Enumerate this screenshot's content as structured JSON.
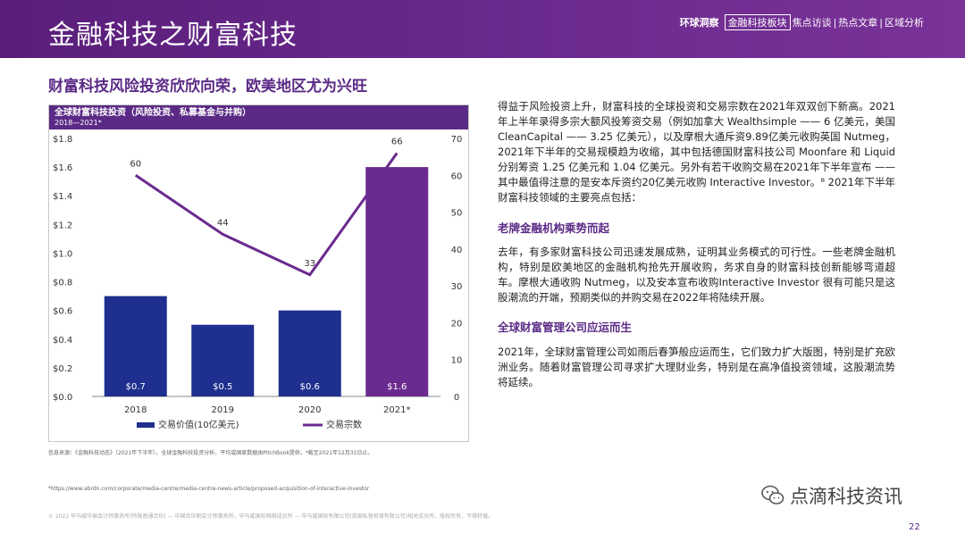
{
  "header": {
    "title": "金融科技之财富科技",
    "nav": {
      "main": "环球洞察",
      "active": "金融科技板块",
      "items": [
        "焦点访谈",
        "热点文章",
        "区域分析"
      ],
      "separator": "|"
    }
  },
  "subtitle": "财富科技风险投资欣欣向荣，欧美地区尤为兴旺",
  "chart_data": {
    "type": "bar",
    "title": "全球财富科技投资（风险投资、私募基金与并购）",
    "subtitle": "2018—2021*",
    "categories": [
      "2018",
      "2019",
      "2020",
      "2021*"
    ],
    "series": [
      {
        "name": "交易价值(10亿美元)",
        "type": "bar",
        "axis": "left",
        "values": [
          0.7,
          0.5,
          0.6,
          1.6
        ],
        "labels": [
          "$0.7",
          "$0.5",
          "$0.6",
          "$1.6"
        ]
      },
      {
        "name": "交易宗数",
        "type": "line",
        "axis": "right",
        "values": [
          60,
          44,
          33,
          66
        ]
      }
    ],
    "left_axis": {
      "ticks": [
        "$0.0",
        "$0.2",
        "$0.4",
        "$0.6",
        "$0.8",
        "$1.0",
        "$1.2",
        "$1.4",
        "$1.6",
        "$1.8"
      ],
      "ylim": [
        0,
        1.8
      ]
    },
    "right_axis": {
      "ticks": [
        "0",
        "10",
        "20",
        "30",
        "40",
        "50",
        "60",
        "70"
      ],
      "ylim": [
        0,
        70
      ]
    },
    "colors": {
      "bar": "#1f2f8f",
      "line": "#6b2a8f",
      "last_bar": "#6b2a8f"
    },
    "legend_position": "bottom",
    "grid": false
  },
  "source_note": "信息来源：《金融科技动态》（2021年下半年），全球金融科技投资分析，平均或国家数据由PitchBook提供，*截至2021年12月31日止。",
  "footnote": "⁸https://www.abrdn.com/corporate/media-centre/media-centre-news-article/proposed-acquisition-of-interactive-investor",
  "copyright": "© 2022 毕马威华振会计师事务所(特殊普通合伙) — 中国合伙制会计师事务所，毕马威国际网络成员所 — 毕马威国际有限公司(英国私营担保有限公司)相关成员所，版权所有，不得转载。",
  "body": {
    "intro": "得益于风险投资上升，财富科技的全球投资和交易宗数在2021年双双创下新高。2021年上半年录得多宗大额风投筹资交易（例如加拿大 Wealthsimple —— 6 亿美元，美国 CleanCapital —— 3.25 亿美元），以及摩根大通斥资9.89亿美元收购英国 Nutmeg，2021年下半年的交易规模趋为收缩，其中包括德国财富科技公司 Moonfare 和 Liquid 分别筹资 1.25 亿美元和 1.04 亿美元。另外有若干收购交易在2021年下半年宣布 —— 其中最值得注意的是安本斥资约20亿美元收购 Interactive Investor。⁸ 2021年下半年财富科技领域的主要亮点包括：",
    "heading1": "老牌金融机构乘势而起",
    "para1": "去年，有多家财富科技公司迅速发展成熟，证明其业务模式的可行性。一些老牌金融机构，特别是欧美地区的金融机构抢先开展收购，务求自身的财富科技创新能够弯道超车。摩根大通收购 Nutmeg，以及安本宣布收购Interactive Investor 很有可能只是这股潮流的开端，预期类似的并购交易在2022年将陆续开展。",
    "heading2": "全球财富管理公司应运而生",
    "para2": "2021年，全球财富管理公司如雨后春笋般应运而生，它们致力扩大版图，特别是扩充欧洲业务。随着财富管理公司寻求扩大理财业务，特别是在高净值投资领域，这股潮流势将延续。"
  },
  "watermark": {
    "text": "点滴科技资讯",
    "icon": "wechat-icon"
  },
  "page_number": "22"
}
